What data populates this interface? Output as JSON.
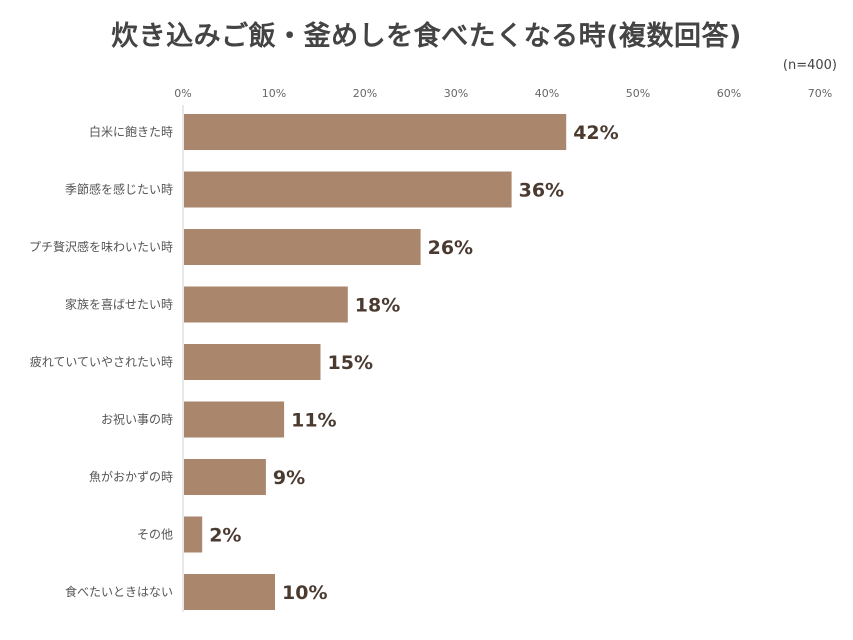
{
  "chart_data": {
    "type": "bar",
    "orientation": "horizontal",
    "title": "炊き込みご飯・釜めしを食べたくなる時(複数回答)",
    "note": "(n=400)",
    "categories": [
      "白米に飽きた時",
      "季節感を感じたい時",
      "プチ贅沢感を味わいたい時",
      "家族を喜ばせたい時",
      "疲れていていやされたい時",
      "お祝い事の時",
      "魚がおかずの時",
      "その他",
      "食べたいときはない"
    ],
    "values": [
      42,
      36,
      26,
      18,
      15,
      11,
      9,
      2,
      10
    ],
    "value_labels": [
      "42%",
      "36%",
      "26%",
      "18%",
      "15%",
      "11%",
      "9%",
      "2%",
      "10%"
    ],
    "xlim": [
      0,
      70
    ],
    "x_ticks": [
      "0%",
      "10%",
      "20%",
      "30%",
      "40%",
      "50%",
      "60%",
      "70%"
    ],
    "x_axis_position": "top",
    "grid": false,
    "bar_color": "#a9866c"
  }
}
